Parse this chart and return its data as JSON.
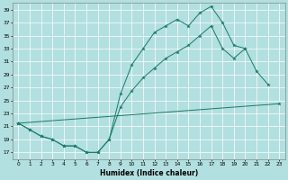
{
  "background_color": "#b2dfdf",
  "grid_color": "#ffffff",
  "line_color": "#1a7a6a",
  "xlabel": "Humidex (Indice chaleur)",
  "xlim": [
    -0.5,
    23.5
  ],
  "ylim": [
    16.0,
    40.0
  ],
  "yticks": [
    17,
    19,
    21,
    23,
    25,
    27,
    29,
    31,
    33,
    35,
    37,
    39
  ],
  "xticks": [
    0,
    1,
    2,
    3,
    4,
    5,
    6,
    7,
    8,
    9,
    10,
    11,
    12,
    13,
    14,
    15,
    16,
    17,
    18,
    19,
    20,
    21,
    22,
    23
  ],
  "series": [
    {
      "x": [
        0,
        1,
        2,
        3,
        4,
        5,
        6,
        7,
        8,
        9,
        10,
        11,
        12,
        13,
        14,
        15,
        16,
        17,
        18,
        19,
        20,
        21,
        22
      ],
      "y": [
        21.5,
        20.5,
        19.5,
        19.0,
        18.0,
        18.0,
        17.0,
        17.0,
        19.0,
        26.0,
        30.5,
        33.0,
        35.5,
        36.5,
        37.5,
        36.5,
        38.5,
        39.5,
        37.0,
        33.5,
        33.0,
        29.5,
        27.5
      ]
    },
    {
      "x": [
        0,
        23
      ],
      "y": [
        21.5,
        24.5
      ]
    },
    {
      "x": [
        0,
        1,
        2,
        3,
        4,
        5,
        6,
        7,
        8,
        9,
        10,
        11,
        12,
        13,
        14,
        15,
        16,
        17,
        18,
        19,
        20
      ],
      "y": [
        21.5,
        20.5,
        19.5,
        19.0,
        18.0,
        18.0,
        17.0,
        17.0,
        19.0,
        24.0,
        26.5,
        28.5,
        30.0,
        31.5,
        32.5,
        33.5,
        35.0,
        36.5,
        33.0,
        31.5,
        33.0
      ]
    }
  ]
}
